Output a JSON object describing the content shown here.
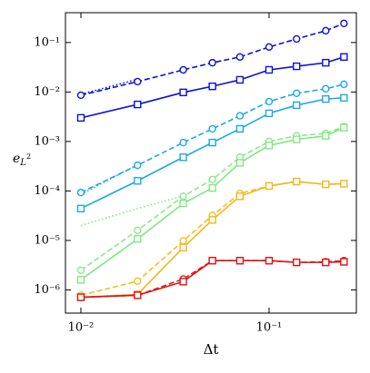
{
  "chart_data": {
    "type": "line",
    "xlabel": "Δt",
    "ylabel": {
      "base": "e",
      "sub": "L",
      "sup": "2"
    },
    "xscale": "log",
    "yscale": "log",
    "xlim": [
      0.00828,
      0.291
    ],
    "ylim": [
      3.4e-07,
      0.4
    ],
    "xticks": [
      {
        "value": 0.01,
        "label": "10⁻²"
      },
      {
        "value": 0.1,
        "label": "10⁻¹"
      }
    ],
    "yticks": [
      {
        "value": 1e-06,
        "label": "10⁻⁶"
      },
      {
        "value": 1e-05,
        "label": "10⁻⁵"
      },
      {
        "value": 0.0001,
        "label": "10⁻⁴"
      },
      {
        "value": 0.001,
        "label": "10⁻³"
      },
      {
        "value": 0.01,
        "label": "10⁻²"
      },
      {
        "value": 0.1,
        "label": "10⁻¹"
      }
    ],
    "x": [
      0.01,
      0.02,
      0.035,
      0.05,
      0.07,
      0.1,
      0.14,
      0.2,
      0.25
    ],
    "series": [
      {
        "color": "#0a10d8",
        "style": "dotted",
        "values": [
          0.009,
          0.018,
          null,
          null,
          null,
          null,
          null,
          null,
          null
        ]
      },
      {
        "color": "#1aa8e6",
        "style": "dotted",
        "values": [
          8.5e-05,
          0.00034,
          null,
          null,
          null,
          null,
          null,
          null,
          null
        ]
      },
      {
        "color": "#80e880",
        "style": "dotted",
        "values": [
          2e-05,
          4.4e-05,
          8e-05,
          null,
          null,
          null,
          null,
          null,
          null
        ]
      },
      {
        "color": "#0a10d8",
        "style": "dashed",
        "marker": "circle",
        "values": [
          0.0086,
          0.0162,
          0.028,
          0.039,
          0.051,
          0.081,
          0.118,
          0.173,
          0.243
        ]
      },
      {
        "color": "#0a10d8",
        "style": "solid",
        "marker": "square",
        "values": [
          0.003,
          0.0056,
          0.0098,
          0.013,
          0.0176,
          0.028,
          0.033,
          0.039,
          0.051
        ]
      },
      {
        "color": "#1aa8e6",
        "style": "dashed",
        "marker": "circle",
        "values": [
          9.3e-05,
          0.00033,
          0.00095,
          0.0018,
          0.0033,
          0.0064,
          0.0094,
          0.0116,
          0.0143
        ]
      },
      {
        "color": "#1aa8e6",
        "style": "solid",
        "marker": "square",
        "values": [
          4.4e-05,
          0.00016,
          0.00048,
          0.00095,
          0.0018,
          0.0037,
          0.0054,
          0.0072,
          0.0076
        ]
      },
      {
        "color": "#8ce88c",
        "style": "dashed",
        "marker": "circle",
        "values": [
          2.5e-06,
          1.6e-05,
          7.8e-05,
          0.00017,
          0.00048,
          0.001,
          0.0013,
          0.00145,
          0.002
        ]
      },
      {
        "color": "#80e880",
        "style": "solid",
        "marker": "square",
        "values": [
          1.6e-06,
          1.07e-05,
          5.6e-05,
          0.000115,
          0.00037,
          0.00083,
          0.0011,
          0.0013,
          0.0019
        ]
      },
      {
        "color": "#f5c020",
        "style": "dashed",
        "marker": "circle",
        "values": [
          7.8e-07,
          1.5e-06,
          9.8e-06,
          3.2e-05,
          8.9e-05,
          0.000126,
          0.000155,
          0.000136,
          0.00014
        ]
      },
      {
        "color": "#f0b818",
        "style": "solid",
        "marker": "square",
        "values": [
          7.1e-07,
          8.1e-07,
          7.2e-06,
          2.6e-05,
          7.8e-05,
          0.000126,
          0.000155,
          0.000136,
          0.00014
        ]
      },
      {
        "color": "#e02020",
        "style": "dashed",
        "marker": "circle",
        "values": [
          7.1e-07,
          7.8e-07,
          1.66e-06,
          3.9e-06,
          3.9e-06,
          3.9e-06,
          3.6e-06,
          3.7e-06,
          3.9e-06
        ]
      },
      {
        "color": "#e01010",
        "style": "solid",
        "marker": "square",
        "values": [
          7.1e-07,
          7.8e-07,
          1.47e-06,
          3.9e-06,
          3.9e-06,
          3.9e-06,
          3.6e-06,
          3.6e-06,
          3.7e-06
        ]
      }
    ]
  }
}
